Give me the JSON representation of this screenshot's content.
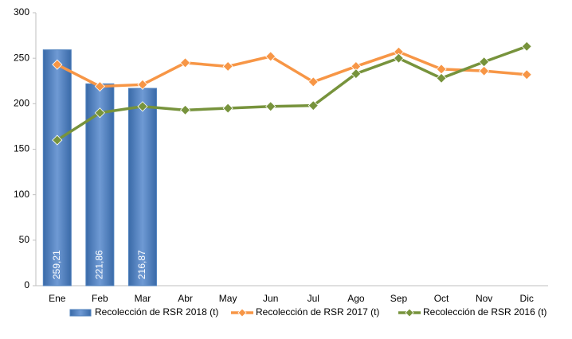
{
  "chart_data": {
    "type": "bar",
    "categories": [
      "Ene",
      "Feb",
      "Mar",
      "Abr",
      "May",
      "Jun",
      "Jul",
      "Ago",
      "Sep",
      "Oct",
      "Nov",
      "Dic"
    ],
    "series": [
      {
        "name": "Recolección de RSR 2018 (t)",
        "type": "bar",
        "color": "#4f81bd",
        "values": [
          259.21,
          221.86,
          216.87,
          null,
          null,
          null,
          null,
          null,
          null,
          null,
          null,
          null
        ],
        "value_labels": [
          "259,21",
          "221,86",
          "216,87",
          null,
          null,
          null,
          null,
          null,
          null,
          null,
          null,
          null
        ]
      },
      {
        "name": "Recolección de RSR 2017 (t)",
        "type": "line",
        "color": "#f79646",
        "values": [
          243,
          219,
          221,
          245,
          241,
          252,
          224,
          241,
          257,
          238,
          236,
          232
        ]
      },
      {
        "name": "Recolección de RSR 2016 (t)",
        "type": "line",
        "color": "#77933c",
        "values": [
          160,
          190,
          197,
          193,
          195,
          197,
          198,
          233,
          250,
          228,
          246,
          263
        ]
      }
    ],
    "ylim": [
      0,
      300
    ],
    "yticks": [
      0,
      50,
      100,
      150,
      200,
      250,
      300
    ],
    "grid": false,
    "legend": "bottom"
  }
}
